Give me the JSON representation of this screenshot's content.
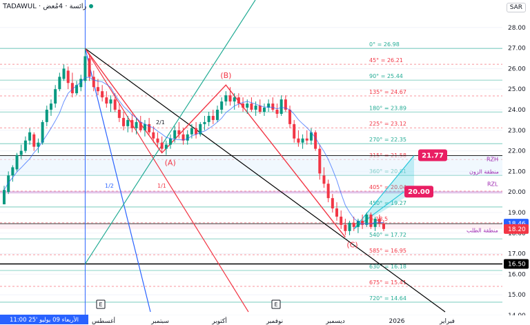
{
  "header": {
    "symbol": "TADAWUL",
    "sep": " · ",
    "name": "رائسة · 4مُعض"
  },
  "currency": "SAR",
  "chart_data": {
    "type": "candlestick",
    "title": "",
    "ylim": [
      14.0,
      29.0
    ],
    "y_ticks": [
      14,
      15,
      16,
      17,
      18,
      19,
      20,
      21,
      22,
      23,
      24,
      25,
      26,
      27,
      28
    ],
    "y_tick_labels": [
      "14.00",
      "15.00",
      "16.00",
      "17.00",
      "18.00",
      "19.00",
      "20.00",
      "21.00",
      "22.00",
      "23.00",
      "24.00",
      "25.00",
      "26.00",
      "27.00",
      "28.00"
    ],
    "x_labels": [
      "أغسطس",
      "سبتمبر",
      "أكتوبر",
      "نوفمبر",
      "ديسمبر",
      "2026",
      "فبراير"
    ],
    "date_badge": "الأربعاء 09 يوليو '25   11:00",
    "price_badges": [
      {
        "value": "18.46",
        "price": 18.46,
        "color": "#2962ff"
      },
      {
        "value": "18.20",
        "price": 18.2,
        "color": "#f23645"
      },
      {
        "value": "16.50",
        "price": 16.5,
        "color": "#000000"
      }
    ],
    "fib_levels": [
      {
        "label": "0° = 26.98",
        "price": 26.98,
        "color": "#22ab94"
      },
      {
        "label": "45° = 26.21",
        "price": 26.21,
        "color": "#f23645"
      },
      {
        "label": "90° = 25.44",
        "price": 25.44,
        "color": "#22ab94"
      },
      {
        "label": "135° = 24.67",
        "price": 24.67,
        "color": "#f23645"
      },
      {
        "label": "180° = 23.89",
        "price": 23.89,
        "color": "#22ab94"
      },
      {
        "label": "225° = 23.12",
        "price": 23.12,
        "color": "#f23645"
      },
      {
        "label": "270° = 22.35",
        "price": 22.35,
        "color": "#22ab94"
      },
      {
        "label": "315° = 21.58",
        "price": 21.58,
        "color": "#f23645"
      },
      {
        "label": "360° = 20.81",
        "price": 20.81,
        "color": "#22ab94"
      },
      {
        "label": "405° = 20.04",
        "price": 20.04,
        "color": "#f23645"
      },
      {
        "label": "450° = 19.27",
        "price": 19.27,
        "color": "#22ab94"
      },
      {
        "label": "= 18.5",
        "price": 18.5,
        "color": "#f23645"
      },
      {
        "label": "540° = 17.72",
        "price": 17.72,
        "color": "#22ab94"
      },
      {
        "label": "585° = 16.95",
        "price": 16.95,
        "color": "#f23645"
      },
      {
        "label": "630° = 16.18",
        "price": 16.18,
        "color": "#22ab94"
      },
      {
        "label": "675° = 15.41",
        "price": 15.41,
        "color": "#f23645"
      },
      {
        "label": "720° = 14.64",
        "price": 14.64,
        "color": "#22ab94"
      }
    ],
    "annotations": [
      {
        "text": "(A)",
        "color": "#f23645"
      },
      {
        "text": "(B)",
        "color": "#f23645"
      },
      {
        "text": "(C)",
        "color": "#f23645"
      },
      {
        "text": "RZH",
        "color": "#9c27b0"
      },
      {
        "text": "منطقة الزون",
        "color": "#9c27b0"
      },
      {
        "text": "RZL",
        "color": "#9c27b0"
      },
      {
        "text": "منطقة الطلب",
        "color": "#9c27b0"
      },
      {
        "text": "1/2",
        "color": "#2962ff"
      },
      {
        "text": "1/1",
        "color": "#f23645"
      },
      {
        "text": "2/1",
        "color": "#131722"
      }
    ],
    "targets": [
      {
        "value": "21.77",
        "price": 21.77,
        "color": "#e91e63"
      },
      {
        "value": "20.00",
        "price": 20.0,
        "color": "#e91e63"
      }
    ],
    "events": [
      "E",
      "E"
    ],
    "candle_data": [
      [
        19.4,
        20.3,
        19.4,
        20.1
      ],
      [
        20.0,
        21.0,
        19.9,
        20.8
      ],
      [
        20.8,
        21.3,
        20.5,
        21.2
      ],
      [
        21.1,
        21.9,
        21.0,
        21.8
      ],
      [
        21.8,
        22.3,
        21.6,
        22.0
      ],
      [
        22.0,
        22.7,
        21.9,
        22.5
      ],
      [
        22.5,
        23.1,
        22.3,
        22.9
      ],
      [
        22.8,
        22.9,
        22.0,
        22.2
      ],
      [
        22.2,
        22.6,
        21.9,
        22.4
      ],
      [
        22.4,
        23.5,
        22.3,
        23.4
      ],
      [
        23.4,
        24.2,
        23.2,
        24.0
      ],
      [
        24.0,
        24.5,
        23.7,
        24.3
      ],
      [
        24.3,
        25.2,
        24.1,
        25.0
      ],
      [
        25.0,
        25.8,
        24.9,
        25.6
      ],
      [
        25.5,
        26.2,
        25.4,
        26.0
      ],
      [
        25.9,
        26.1,
        25.0,
        25.3
      ],
      [
        25.3,
        25.8,
        24.6,
        24.8
      ],
      [
        24.8,
        25.4,
        24.7,
        25.2
      ],
      [
        25.1,
        25.7,
        24.9,
        25.5
      ],
      [
        25.4,
        26.98,
        25.3,
        26.6
      ],
      [
        26.5,
        26.7,
        25.4,
        25.6
      ],
      [
        25.6,
        25.9,
        24.9,
        25.1
      ],
      [
        25.1,
        25.5,
        24.7,
        24.9
      ],
      [
        24.9,
        25.2,
        24.4,
        24.6
      ],
      [
        24.6,
        24.9,
        24.1,
        24.3
      ],
      [
        24.3,
        24.7,
        23.9,
        24.5
      ],
      [
        24.5,
        24.8,
        23.9,
        24.0
      ],
      [
        24.0,
        24.3,
        23.4,
        23.6
      ],
      [
        23.6,
        23.9,
        23.0,
        23.2
      ],
      [
        23.2,
        23.7,
        22.9,
        23.5
      ],
      [
        23.5,
        23.8,
        22.9,
        23.1
      ],
      [
        23.1,
        23.6,
        22.8,
        23.4
      ],
      [
        23.4,
        23.7,
        22.9,
        23.0
      ],
      [
        23.0,
        23.5,
        22.7,
        23.3
      ],
      [
        23.3,
        23.6,
        22.8,
        22.9
      ],
      [
        22.9,
        23.2,
        22.4,
        22.6
      ],
      [
        22.6,
        22.9,
        22.2,
        22.4
      ],
      [
        22.4,
        22.7,
        21.9,
        22.1
      ],
      [
        22.1,
        22.5,
        21.8,
        22.3
      ],
      [
        22.3,
        22.8,
        22.1,
        22.6
      ],
      [
        22.6,
        23.2,
        22.4,
        23.0
      ],
      [
        23.0,
        23.4,
        22.6,
        22.8
      ],
      [
        22.8,
        23.1,
        22.3,
        22.5
      ],
      [
        22.5,
        23.0,
        22.3,
        22.8
      ],
      [
        22.8,
        23.3,
        22.6,
        23.1
      ],
      [
        23.1,
        23.4,
        22.6,
        22.8
      ],
      [
        22.8,
        23.4,
        22.7,
        23.3
      ],
      [
        23.3,
        23.7,
        23.0,
        23.4
      ],
      [
        23.4,
        23.9,
        23.2,
        23.7
      ],
      [
        23.7,
        24.0,
        23.3,
        23.5
      ],
      [
        23.5,
        24.2,
        23.4,
        24.0
      ],
      [
        24.0,
        24.6,
        23.8,
        24.4
      ],
      [
        24.4,
        24.9,
        24.2,
        24.7
      ],
      [
        24.7,
        25.1,
        24.2,
        24.4
      ],
      [
        24.4,
        24.8,
        24.0,
        24.6
      ],
      [
        24.6,
        24.8,
        24.1,
        24.3
      ],
      [
        24.3,
        24.6,
        23.9,
        24.1
      ],
      [
        24.1,
        24.5,
        23.8,
        24.3
      ],
      [
        24.3,
        24.6,
        23.9,
        24.0
      ],
      [
        24.0,
        24.4,
        23.7,
        24.2
      ],
      [
        24.2,
        24.5,
        23.8,
        23.9
      ],
      [
        23.9,
        24.3,
        23.7,
        24.1
      ],
      [
        24.1,
        24.5,
        23.9,
        24.3
      ],
      [
        24.3,
        24.6,
        23.9,
        24.0
      ],
      [
        24.0,
        24.3,
        23.6,
        23.8
      ],
      [
        23.8,
        24.7,
        23.7,
        24.5
      ],
      [
        24.5,
        24.7,
        23.9,
        24.0
      ],
      [
        24.0,
        24.2,
        23.1,
        23.3
      ],
      [
        23.3,
        23.5,
        22.4,
        22.6
      ],
      [
        22.6,
        23.0,
        22.2,
        22.4
      ],
      [
        22.4,
        22.8,
        22.1,
        22.6
      ],
      [
        22.6,
        23.0,
        22.3,
        22.5
      ],
      [
        22.5,
        23.1,
        22.3,
        22.9
      ],
      [
        22.9,
        23.0,
        22.0,
        22.1
      ],
      [
        22.1,
        22.3,
        20.6,
        20.9
      ],
      [
        20.8,
        21.2,
        20.2,
        20.4
      ],
      [
        20.4,
        20.6,
        19.5,
        19.7
      ],
      [
        19.7,
        19.9,
        19.0,
        19.2
      ],
      [
        19.2,
        19.5,
        18.6,
        18.8
      ],
      [
        18.8,
        19.1,
        18.2,
        18.4
      ],
      [
        18.4,
        18.7,
        17.9,
        18.1
      ],
      [
        18.1,
        18.6,
        17.9,
        18.5
      ],
      [
        18.5,
        18.8,
        18.1,
        18.3
      ],
      [
        18.3,
        18.7,
        18.0,
        18.6
      ],
      [
        18.6,
        18.9,
        18.2,
        18.4
      ],
      [
        18.4,
        19.0,
        18.3,
        18.9
      ],
      [
        18.9,
        19.0,
        18.2,
        18.3
      ],
      [
        18.3,
        18.8,
        18.1,
        18.7
      ],
      [
        18.7,
        18.9,
        18.3,
        18.46
      ],
      [
        18.46,
        18.6,
        18.1,
        18.2
      ]
    ]
  }
}
